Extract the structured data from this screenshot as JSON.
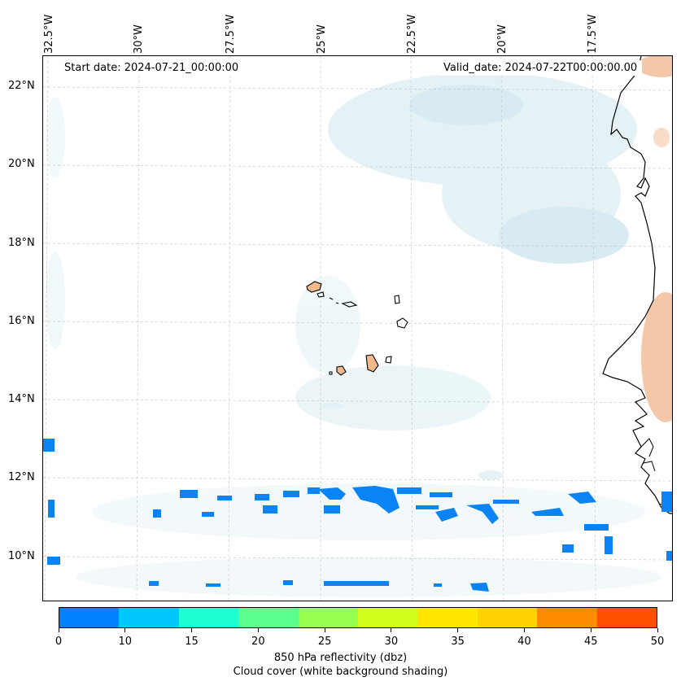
{
  "map": {
    "start_date": "Start date: 2024-07-21_00:00:00",
    "valid_date": "Valid_date: 2024-07-22T00:00:00.00",
    "lon_labels": [
      "32.5°W",
      "30°W",
      "27.5°W",
      "25°W",
      "22.5°W",
      "20°W",
      "17.5°W"
    ],
    "lat_labels": [
      "22°N",
      "20°N",
      "18°N",
      "16°N",
      "14°N",
      "12°N",
      "10°N"
    ],
    "colors": {
      "coast": "#000000",
      "land_fill": "#f2b98c",
      "reflectivity_low": "#0a84f5",
      "cloud_shade": "#bfe0ea",
      "hot_shade": "#f4c7a8",
      "grid": "#c8c8c8"
    }
  },
  "colorbar": {
    "ticks": [
      "0",
      "10",
      "15",
      "20",
      "25",
      "30",
      "35",
      "40",
      "45",
      "50"
    ],
    "colors": [
      "#0080ff",
      "#00c8ff",
      "#1effd2",
      "#5aff8c",
      "#96ff50",
      "#d2ff1e",
      "#ffe600",
      "#ffd200",
      "#ff8c00",
      "#ff5000"
    ],
    "label_line1": "850 hPa reflectivity (dbz)",
    "label_line2": "Cloud cover (white background shading)"
  }
}
